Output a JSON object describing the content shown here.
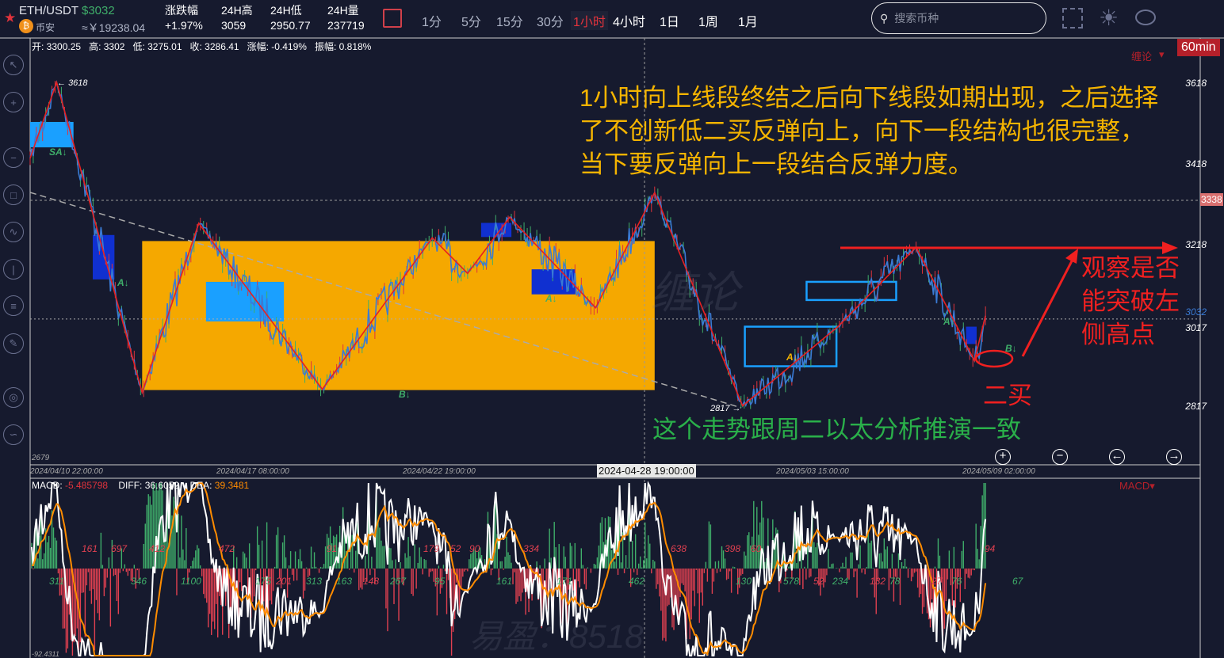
{
  "header": {
    "pair": "ETH/USDT",
    "price": "$3032",
    "exchange": "币安",
    "cny_price": "≈￥19238.04",
    "stats": [
      {
        "label": "涨跌幅",
        "value": "+1.97%"
      },
      {
        "label": "24H高",
        "value": "3059"
      },
      {
        "label": "24H低",
        "value": "2950.77"
      },
      {
        "label": "24H量",
        "value": "237719"
      }
    ],
    "timeframes": [
      "1分",
      "5分",
      "15分",
      "30分",
      "1小时",
      "4小时",
      "1日",
      "1周",
      "1月"
    ],
    "active_timeframe": "1小时",
    "search_placeholder": "搜索币种",
    "icons": [
      "fullscreen-icon",
      "brightness-icon",
      "eye-icon"
    ]
  },
  "colors": {
    "up": "#3fae6a",
    "down": "#e0333c",
    "zigzag": "#e82020",
    "price_line": "#3a7bd5",
    "zone_orange": "#f5a800",
    "zone_blue": "#1aa0ff",
    "macd_diff": "#ffffff",
    "macd_dea": "#ff8c00"
  },
  "ohlc": {
    "open": "开: 3300.25",
    "high": "高: 3302",
    "low": "低: 3275.01",
    "close": "收: 3286.41",
    "change": "涨幅: -0.419%",
    "amplitude": "振幅: 0.818%"
  },
  "indicator_menu": "缠论",
  "interval_tag": "60min",
  "annotations": {
    "main": "1小时向上线段终结之后向下线段如期出现，之后选择了不创新低二买反弹向上，向下一段结构也很完整，当下要反弹向上一段结合反弹力度。",
    "observe": "观察是否能突破左侧高点",
    "second_buy": "二买",
    "consistent": "这个走势跟周二以太分析推演一致",
    "watermark_logo": "缠论",
    "watermark_bottom": "易盈：8518"
  },
  "chart_data": {
    "type": "line",
    "symbol": "ETH/USDT",
    "interval": "60min",
    "y_ticks": [
      "3618",
      "3418",
      "3218",
      "3017",
      "2817",
      "2679"
    ],
    "ylim": [
      2679,
      3700
    ],
    "price_markers": {
      "high": "3618",
      "low": "2817",
      "current": "3032",
      "crosshair": "3338"
    },
    "x_ticks": [
      "2024/04/10 22:00:00",
      "2024/04/17 08:00:00",
      "2024/04/22 19:00:00",
      "2024/04/28 19:00:00",
      "2024/05/03 15:00:00",
      "2024/05/09 02:00:00"
    ],
    "crosshair_time": "2024-04-28 19:00:00",
    "zigzag": [
      [
        "2024-04-10 22:00",
        3430
      ],
      [
        "2024-04-11 20:00",
        3618
      ],
      [
        "2024-04-14 19:00",
        2850
      ],
      [
        "2024-04-16 18:00",
        3269
      ],
      [
        "2024-04-20 11:00",
        2858
      ],
      [
        "2024-04-23 13:00",
        3233
      ],
      [
        "2024-04-24 10:00",
        3145
      ],
      [
        "2024-04-25 11:00",
        3284
      ],
      [
        "2024-04-27 14:00",
        3060
      ],
      [
        "2024-04-29 04:00",
        3345
      ],
      [
        "2024-05-02 10:00",
        2817
      ],
      [
        "2024-05-05 11:00",
        3013
      ],
      [
        "2024-05-07 18:00",
        3210
      ],
      [
        "2024-05-10 07:00",
        2929
      ],
      [
        "2024-05-11 08:00",
        3040
      ]
    ],
    "zones": [
      {
        "kind": "orange",
        "from": "2024-04-14 19:00",
        "to": "2024-04-29 04:00",
        "top": 3225,
        "bottom": 2856
      },
      {
        "kind": "blue",
        "from": "2024-04-10 22:00",
        "to": "2024-04-12 10:00",
        "top": 3520,
        "bottom": 3457
      },
      {
        "kind": "blue",
        "from": "2024-04-17 00:00",
        "to": "2024-04-19 08:00",
        "top": 3124,
        "bottom": 3026
      },
      {
        "kind": "darkblue",
        "from": "2024-04-13 02:00",
        "to": "2024-04-13 20:00",
        "top": 3240,
        "bottom": 3130
      },
      {
        "kind": "darkblue",
        "from": "2024-04-24 18:00",
        "to": "2024-04-25 12:00",
        "top": 3270,
        "bottom": 3235
      },
      {
        "kind": "darkblue",
        "from": "2024-04-26 00:00",
        "to": "2024-04-27 02:00",
        "top": 3155,
        "bottom": 3093
      },
      {
        "kind": "outline",
        "from": "2024-05-02 12:00",
        "to": "2024-05-05 10:00",
        "top": 3013,
        "bottom": 2915
      },
      {
        "kind": "outline",
        "from": "2024-05-04 13:00",
        "to": "2024-05-07 04:00",
        "top": 3124,
        "bottom": 3079
      },
      {
        "kind": "darkblue",
        "from": "2024-05-09 12:00",
        "to": "2024-05-10 12:00",
        "top": 3013,
        "bottom": 2970
      }
    ],
    "signals": [
      "SA↓",
      "A↓",
      "B↓",
      "A↓",
      "A↓",
      "A↓",
      "B↓"
    ],
    "arrow_target": 3218
  },
  "macd": {
    "label": "MACD: ",
    "macd_value": "-5.485798",
    "diff_label": "DIFF: ",
    "diff_value": "36.6052",
    "dea_label": "DEA: ",
    "dea_value": "39.3481",
    "menu": "MACD",
    "min_label": "-92.4311",
    "top_labels": [
      "161",
      "697",
      "412",
      "472",
      "91",
      "179",
      "52",
      "90",
      "334",
      "638",
      "398",
      "60",
      "94"
    ],
    "bottom_labels": [
      "311",
      "346",
      "1100",
      "175",
      "201",
      "313",
      "163",
      "148",
      "267",
      "95",
      "161",
      "171",
      "462",
      "130",
      "578",
      "52",
      "234",
      "132",
      "78",
      "27",
      "76",
      "67"
    ]
  },
  "controls": [
    "zoom-in",
    "zoom-out",
    "scroll-left",
    "scroll-right"
  ]
}
